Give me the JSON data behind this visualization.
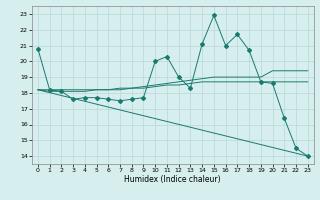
{
  "xlabel": "Humidex (Indice chaleur)",
  "background_color": "#d6eeee",
  "line_color": "#1a7a6e",
  "grid_color": "#b8d8d8",
  "xlim": [
    -0.5,
    23.5
  ],
  "ylim": [
    13.5,
    23.5
  ],
  "yticks": [
    14,
    15,
    16,
    17,
    18,
    19,
    20,
    21,
    22,
    23
  ],
  "xticks": [
    0,
    1,
    2,
    3,
    4,
    5,
    6,
    7,
    8,
    9,
    10,
    11,
    12,
    13,
    14,
    15,
    16,
    17,
    18,
    19,
    20,
    21,
    22,
    23
  ],
  "series1_x": [
    0,
    1,
    2,
    3,
    4,
    5,
    6,
    7,
    8,
    9,
    10,
    11,
    12,
    13,
    14,
    15,
    16,
    17,
    18,
    19,
    20,
    21,
    22,
    23
  ],
  "series1_y": [
    20.8,
    18.2,
    18.1,
    17.6,
    17.7,
    17.7,
    17.6,
    17.5,
    17.6,
    17.7,
    20.0,
    20.3,
    19.0,
    18.3,
    21.1,
    22.9,
    21.0,
    21.7,
    20.7,
    18.7,
    18.6,
    16.4,
    14.5,
    14.0
  ],
  "series2_x": [
    0,
    1,
    2,
    3,
    4,
    5,
    6,
    7,
    8,
    9,
    10,
    11,
    12,
    13,
    14,
    15,
    16,
    17,
    18,
    19,
    20,
    21,
    22,
    23
  ],
  "series2_y": [
    18.2,
    18.1,
    18.1,
    18.1,
    18.1,
    18.2,
    18.2,
    18.2,
    18.3,
    18.4,
    18.5,
    18.6,
    18.7,
    18.8,
    18.9,
    19.0,
    19.0,
    19.0,
    19.0,
    19.0,
    19.4,
    19.4,
    19.4,
    19.4
  ],
  "series3_x": [
    0,
    1,
    2,
    3,
    4,
    5,
    6,
    7,
    8,
    9,
    10,
    11,
    12,
    13,
    14,
    15,
    16,
    17,
    18,
    19,
    20,
    21,
    22,
    23
  ],
  "series3_y": [
    18.2,
    18.2,
    18.2,
    18.2,
    18.2,
    18.2,
    18.2,
    18.3,
    18.3,
    18.3,
    18.4,
    18.5,
    18.5,
    18.6,
    18.7,
    18.7,
    18.7,
    18.7,
    18.7,
    18.7,
    18.7,
    18.7,
    18.7,
    18.7
  ],
  "series4_x": [
    0,
    23
  ],
  "series4_y": [
    18.2,
    14.0
  ]
}
